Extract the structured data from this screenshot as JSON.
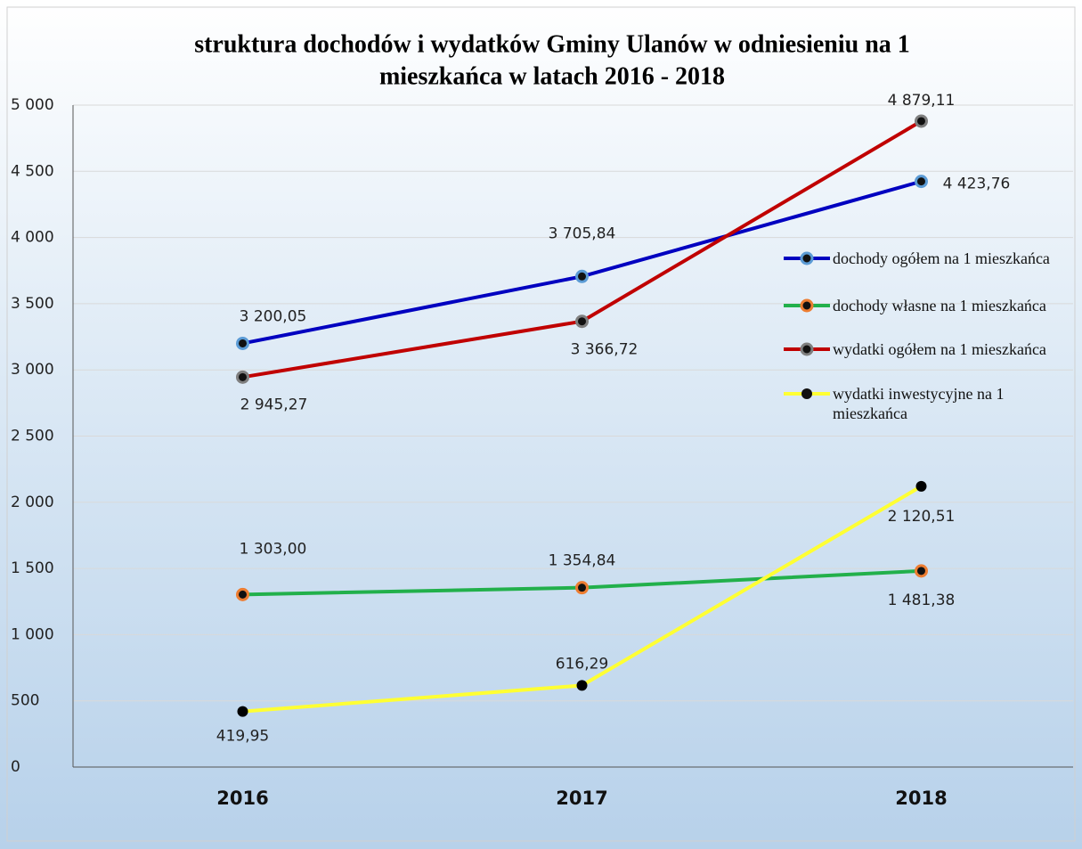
{
  "chart_data": {
    "type": "line",
    "title": [
      "struktura dochodów i wydatków Gminy Ulanów w odniesieniu na 1",
      "mieszkańca w latach 2016 - 2018"
    ],
    "categories": [
      "2016",
      "2017",
      "2018"
    ],
    "ylim": [
      0,
      5000
    ],
    "yticks": [
      0,
      500,
      {
        "value": 1000,
        "label": "1 000"
      },
      {
        "value": 1500,
        "label": "1 500"
      },
      {
        "value": 2000,
        "label": "2 000"
      },
      {
        "value": 2500,
        "label": "2 500"
      },
      {
        "value": 3000,
        "label": "3 000"
      },
      {
        "value": 3500,
        "label": "3 500"
      },
      {
        "value": 4000,
        "label": "4 000"
      },
      {
        "value": 4500,
        "label": "4 500"
      },
      {
        "value": 5000,
        "label": "5 000"
      }
    ],
    "grid": true,
    "legend": "right",
    "series": [
      {
        "name": "dochody ogółem na 1 mieszkańca",
        "color": "#0000c0",
        "marker_color": "#5b9bd5",
        "values": [
          3200.05,
          3705.84,
          4423.76
        ],
        "value_labels": [
          "3 200,05",
          "3 705,84",
          "4 423,76"
        ]
      },
      {
        "name": "dochody własne na 1 mieszkańca",
        "color": "#22b04b",
        "marker_color": "#ed7d31",
        "values": [
          1303.0,
          1354.84,
          1481.38
        ],
        "value_labels": [
          "1 303,00",
          "1 354,84",
          "1 481,38"
        ]
      },
      {
        "name": "wydatki ogółem na 1 mieszkańca",
        "color": "#c00000",
        "marker_color": "#7f7f7f",
        "values": [
          2945.27,
          3366.72,
          4879.11
        ],
        "value_labels": [
          "2 945,27",
          "3 366,72",
          "4 879,11"
        ]
      },
      {
        "name": "wydatki inwestycyjne na 1 mieszkańca",
        "color": "#ffff33",
        "marker_color": "#000000",
        "values": [
          419.95,
          616.29,
          2120.51
        ],
        "value_labels": [
          "419,95",
          "616,29",
          "2 120,51"
        ]
      }
    ]
  }
}
